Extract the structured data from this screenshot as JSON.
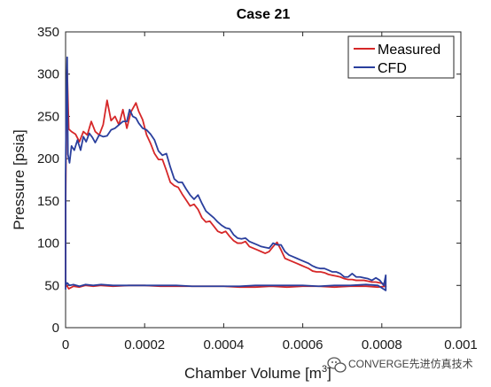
{
  "chart_data": {
    "type": "line",
    "title": "Case 21",
    "xlabel": "Chamber Volume [m",
    "xlabel_sup": "3",
    "xlabel_close": "]",
    "ylabel": "Pressure [psia]",
    "xlim": [
      0,
      0.001
    ],
    "ylim": [
      0,
      350
    ],
    "xticks": [
      0,
      0.0002,
      0.0004,
      0.0006,
      0.0008,
      0.001
    ],
    "xtick_labels": [
      "0",
      "0.0002",
      "0.0004",
      "0.0006",
      "0.0008",
      "0.001"
    ],
    "yticks": [
      0,
      50,
      100,
      150,
      200,
      250,
      300,
      350
    ],
    "ytick_labels": [
      "0",
      "50",
      "100",
      "150",
      "200",
      "250",
      "300",
      "350"
    ],
    "grid": false,
    "legend_position": "top-right",
    "series": [
      {
        "name": "Measured",
        "color": "#d62728",
        "values": [
          [
            0.0,
            48
          ],
          [
            0.0,
            60
          ],
          [
            0.0,
            140
          ],
          [
            2e-06,
            250
          ],
          [
            4e-06,
            305
          ],
          [
            8e-06,
            235
          ],
          [
            1.5e-05,
            232
          ],
          [
            2.5e-05,
            229
          ],
          [
            3.5e-05,
            220
          ],
          [
            4.5e-05,
            232
          ],
          [
            5.5e-05,
            228
          ],
          [
            6.5e-05,
            244
          ],
          [
            7.5e-05,
            232
          ],
          [
            8.5e-05,
            228
          ],
          [
            9.5e-05,
            240
          ],
          [
            0.000105,
            269
          ],
          [
            0.000115,
            245
          ],
          [
            0.000125,
            250
          ],
          [
            0.000135,
            240
          ],
          [
            0.000145,
            258
          ],
          [
            0.000155,
            236
          ],
          [
            0.000165,
            255
          ],
          [
            0.000178,
            266
          ],
          [
            0.000185,
            256
          ],
          [
            0.000195,
            246
          ],
          [
            0.000205,
            228
          ],
          [
            0.000215,
            218
          ],
          [
            0.000225,
            206
          ],
          [
            0.000235,
            199
          ],
          [
            0.000245,
            199
          ],
          [
            0.000255,
            186
          ],
          [
            0.000265,
            172
          ],
          [
            0.000275,
            168
          ],
          [
            0.000285,
            166
          ],
          [
            0.000295,
            158
          ],
          [
            0.000305,
            151
          ],
          [
            0.000315,
            144
          ],
          [
            0.000325,
            146
          ],
          [
            0.000335,
            140
          ],
          [
            0.000345,
            130
          ],
          [
            0.000355,
            125
          ],
          [
            0.000365,
            126
          ],
          [
            0.000375,
            120
          ],
          [
            0.000385,
            114
          ],
          [
            0.000395,
            112
          ],
          [
            0.000405,
            114
          ],
          [
            0.000415,
            108
          ],
          [
            0.000425,
            103
          ],
          [
            0.000435,
            100
          ],
          [
            0.000445,
            100
          ],
          [
            0.000455,
            102
          ],
          [
            0.000465,
            96
          ],
          [
            0.000475,
            94
          ],
          [
            0.000485,
            92
          ],
          [
            0.000495,
            90
          ],
          [
            0.000505,
            88
          ],
          [
            0.000515,
            90
          ],
          [
            0.000525,
            96
          ],
          [
            0.000535,
            101
          ],
          [
            0.000545,
            92
          ],
          [
            0.000555,
            82
          ],
          [
            0.000565,
            80
          ],
          [
            0.000575,
            78
          ],
          [
            0.000585,
            76
          ],
          [
            0.000595,
            74
          ],
          [
            0.000605,
            72
          ],
          [
            0.000615,
            70
          ],
          [
            0.000625,
            67
          ],
          [
            0.000635,
            66
          ],
          [
            0.000645,
            66
          ],
          [
            0.000655,
            65
          ],
          [
            0.000665,
            63
          ],
          [
            0.000675,
            62
          ],
          [
            0.000685,
            61
          ],
          [
            0.000695,
            60
          ],
          [
            0.000705,
            58
          ],
          [
            0.000715,
            57
          ],
          [
            0.000725,
            57
          ],
          [
            0.000735,
            56
          ],
          [
            0.000745,
            56
          ],
          [
            0.000755,
            56
          ],
          [
            0.000765,
            55
          ],
          [
            0.000775,
            54
          ],
          [
            0.000785,
            54
          ],
          [
            0.000795,
            53
          ],
          [
            0.000805,
            52
          ],
          [
            0.00081,
            49
          ],
          [
            0.00079,
            48
          ],
          [
            0.00076,
            49
          ],
          [
            0.00072,
            49
          ],
          [
            0.00068,
            48
          ],
          [
            0.00064,
            49
          ],
          [
            0.0006,
            49
          ],
          [
            0.00056,
            48
          ],
          [
            0.00052,
            49
          ],
          [
            0.00048,
            48
          ],
          [
            0.00044,
            48
          ],
          [
            0.0004,
            49
          ],
          [
            0.00036,
            49
          ],
          [
            0.00032,
            49
          ],
          [
            0.00028,
            49
          ],
          [
            0.00024,
            49
          ],
          [
            0.0002,
            50
          ],
          [
            0.00016,
            50
          ],
          [
            0.00012,
            49
          ],
          [
            9e-05,
            50
          ],
          [
            7e-05,
            49
          ],
          [
            5e-05,
            50
          ],
          [
            3.5e-05,
            48
          ],
          [
            2e-05,
            49
          ],
          [
            8e-06,
            46
          ],
          [
            3e-06,
            50
          ],
          [
            0.0,
            49
          ]
        ]
      },
      {
        "name": "CFD",
        "color": "#2a3f9d",
        "values": [
          [
            0.0,
            45
          ],
          [
            0.0,
            70
          ],
          [
            0.0,
            180
          ],
          [
            2e-06,
            275
          ],
          [
            4e-06,
            320
          ],
          [
            6e-06,
            205
          ],
          [
            1e-05,
            195
          ],
          [
            1.5e-05,
            215
          ],
          [
            2.2e-05,
            210
          ],
          [
            3e-05,
            222
          ],
          [
            3.8e-05,
            210
          ],
          [
            4.5e-05,
            226
          ],
          [
            5.2e-05,
            220
          ],
          [
            6e-05,
            230
          ],
          [
            6.8e-05,
            225
          ],
          [
            7.5e-05,
            219
          ],
          [
            8.5e-05,
            228
          ],
          [
            9.5e-05,
            226
          ],
          [
            0.000105,
            227
          ],
          [
            0.000115,
            234
          ],
          [
            0.000125,
            236
          ],
          [
            0.000135,
            240
          ],
          [
            0.000145,
            244
          ],
          [
            0.000155,
            244
          ],
          [
            0.000162,
            258
          ],
          [
            0.00017,
            250
          ],
          [
            0.000178,
            248
          ],
          [
            0.000185,
            242
          ],
          [
            0.000195,
            236
          ],
          [
            0.000205,
            234
          ],
          [
            0.000215,
            229
          ],
          [
            0.000225,
            222
          ],
          [
            0.000235,
            209
          ],
          [
            0.000245,
            204
          ],
          [
            0.000255,
            206
          ],
          [
            0.000265,
            190
          ],
          [
            0.000275,
            176
          ],
          [
            0.000285,
            172
          ],
          [
            0.000295,
            172
          ],
          [
            0.000305,
            164
          ],
          [
            0.000315,
            157
          ],
          [
            0.000325,
            152
          ],
          [
            0.000335,
            157
          ],
          [
            0.000345,
            147
          ],
          [
            0.000355,
            138
          ],
          [
            0.000365,
            134
          ],
          [
            0.000375,
            130
          ],
          [
            0.000385,
            125
          ],
          [
            0.000395,
            121
          ],
          [
            0.000405,
            118
          ],
          [
            0.000415,
            117
          ],
          [
            0.000425,
            110
          ],
          [
            0.000435,
            106
          ],
          [
            0.000445,
            105
          ],
          [
            0.000455,
            106
          ],
          [
            0.000465,
            102
          ],
          [
            0.000475,
            100
          ],
          [
            0.000485,
            98
          ],
          [
            0.000495,
            96
          ],
          [
            0.000505,
            95
          ],
          [
            0.000515,
            94
          ],
          [
            0.000525,
            100
          ],
          [
            0.000535,
            98
          ],
          [
            0.000545,
            98
          ],
          [
            0.000555,
            90
          ],
          [
            0.000565,
            86
          ],
          [
            0.000575,
            84
          ],
          [
            0.000585,
            82
          ],
          [
            0.000595,
            80
          ],
          [
            0.000605,
            78
          ],
          [
            0.000615,
            76
          ],
          [
            0.000625,
            73
          ],
          [
            0.000635,
            71
          ],
          [
            0.000645,
            70
          ],
          [
            0.000655,
            70
          ],
          [
            0.000665,
            68
          ],
          [
            0.000675,
            66
          ],
          [
            0.000685,
            66
          ],
          [
            0.000695,
            64
          ],
          [
            0.000705,
            60
          ],
          [
            0.000715,
            60
          ],
          [
            0.000725,
            64
          ],
          [
            0.000735,
            60
          ],
          [
            0.000745,
            60
          ],
          [
            0.000755,
            59
          ],
          [
            0.000765,
            58
          ],
          [
            0.000775,
            56
          ],
          [
            0.000785,
            59
          ],
          [
            0.000795,
            56
          ],
          [
            0.000805,
            50
          ],
          [
            0.00081,
            62
          ],
          [
            0.00081,
            44
          ],
          [
            0.00079,
            50
          ],
          [
            0.00076,
            51
          ],
          [
            0.00072,
            50
          ],
          [
            0.00068,
            50
          ],
          [
            0.00064,
            49
          ],
          [
            0.0006,
            50
          ],
          [
            0.00056,
            50
          ],
          [
            0.00052,
            50
          ],
          [
            0.00048,
            50
          ],
          [
            0.00044,
            49
          ],
          [
            0.0004,
            49
          ],
          [
            0.00036,
            49
          ],
          [
            0.00032,
            49
          ],
          [
            0.00028,
            50
          ],
          [
            0.00024,
            50
          ],
          [
            0.0002,
            50
          ],
          [
            0.00016,
            50
          ],
          [
            0.00012,
            50
          ],
          [
            9e-05,
            51
          ],
          [
            7e-05,
            50
          ],
          [
            5e-05,
            51
          ],
          [
            3.5e-05,
            49
          ],
          [
            2e-05,
            51
          ],
          [
            1e-05,
            50
          ],
          [
            4e-06,
            53
          ],
          [
            0.0,
            50
          ]
        ]
      }
    ]
  },
  "watermark": {
    "icon": "wechat-icon",
    "text": "CONVERGE先进仿真技术"
  }
}
